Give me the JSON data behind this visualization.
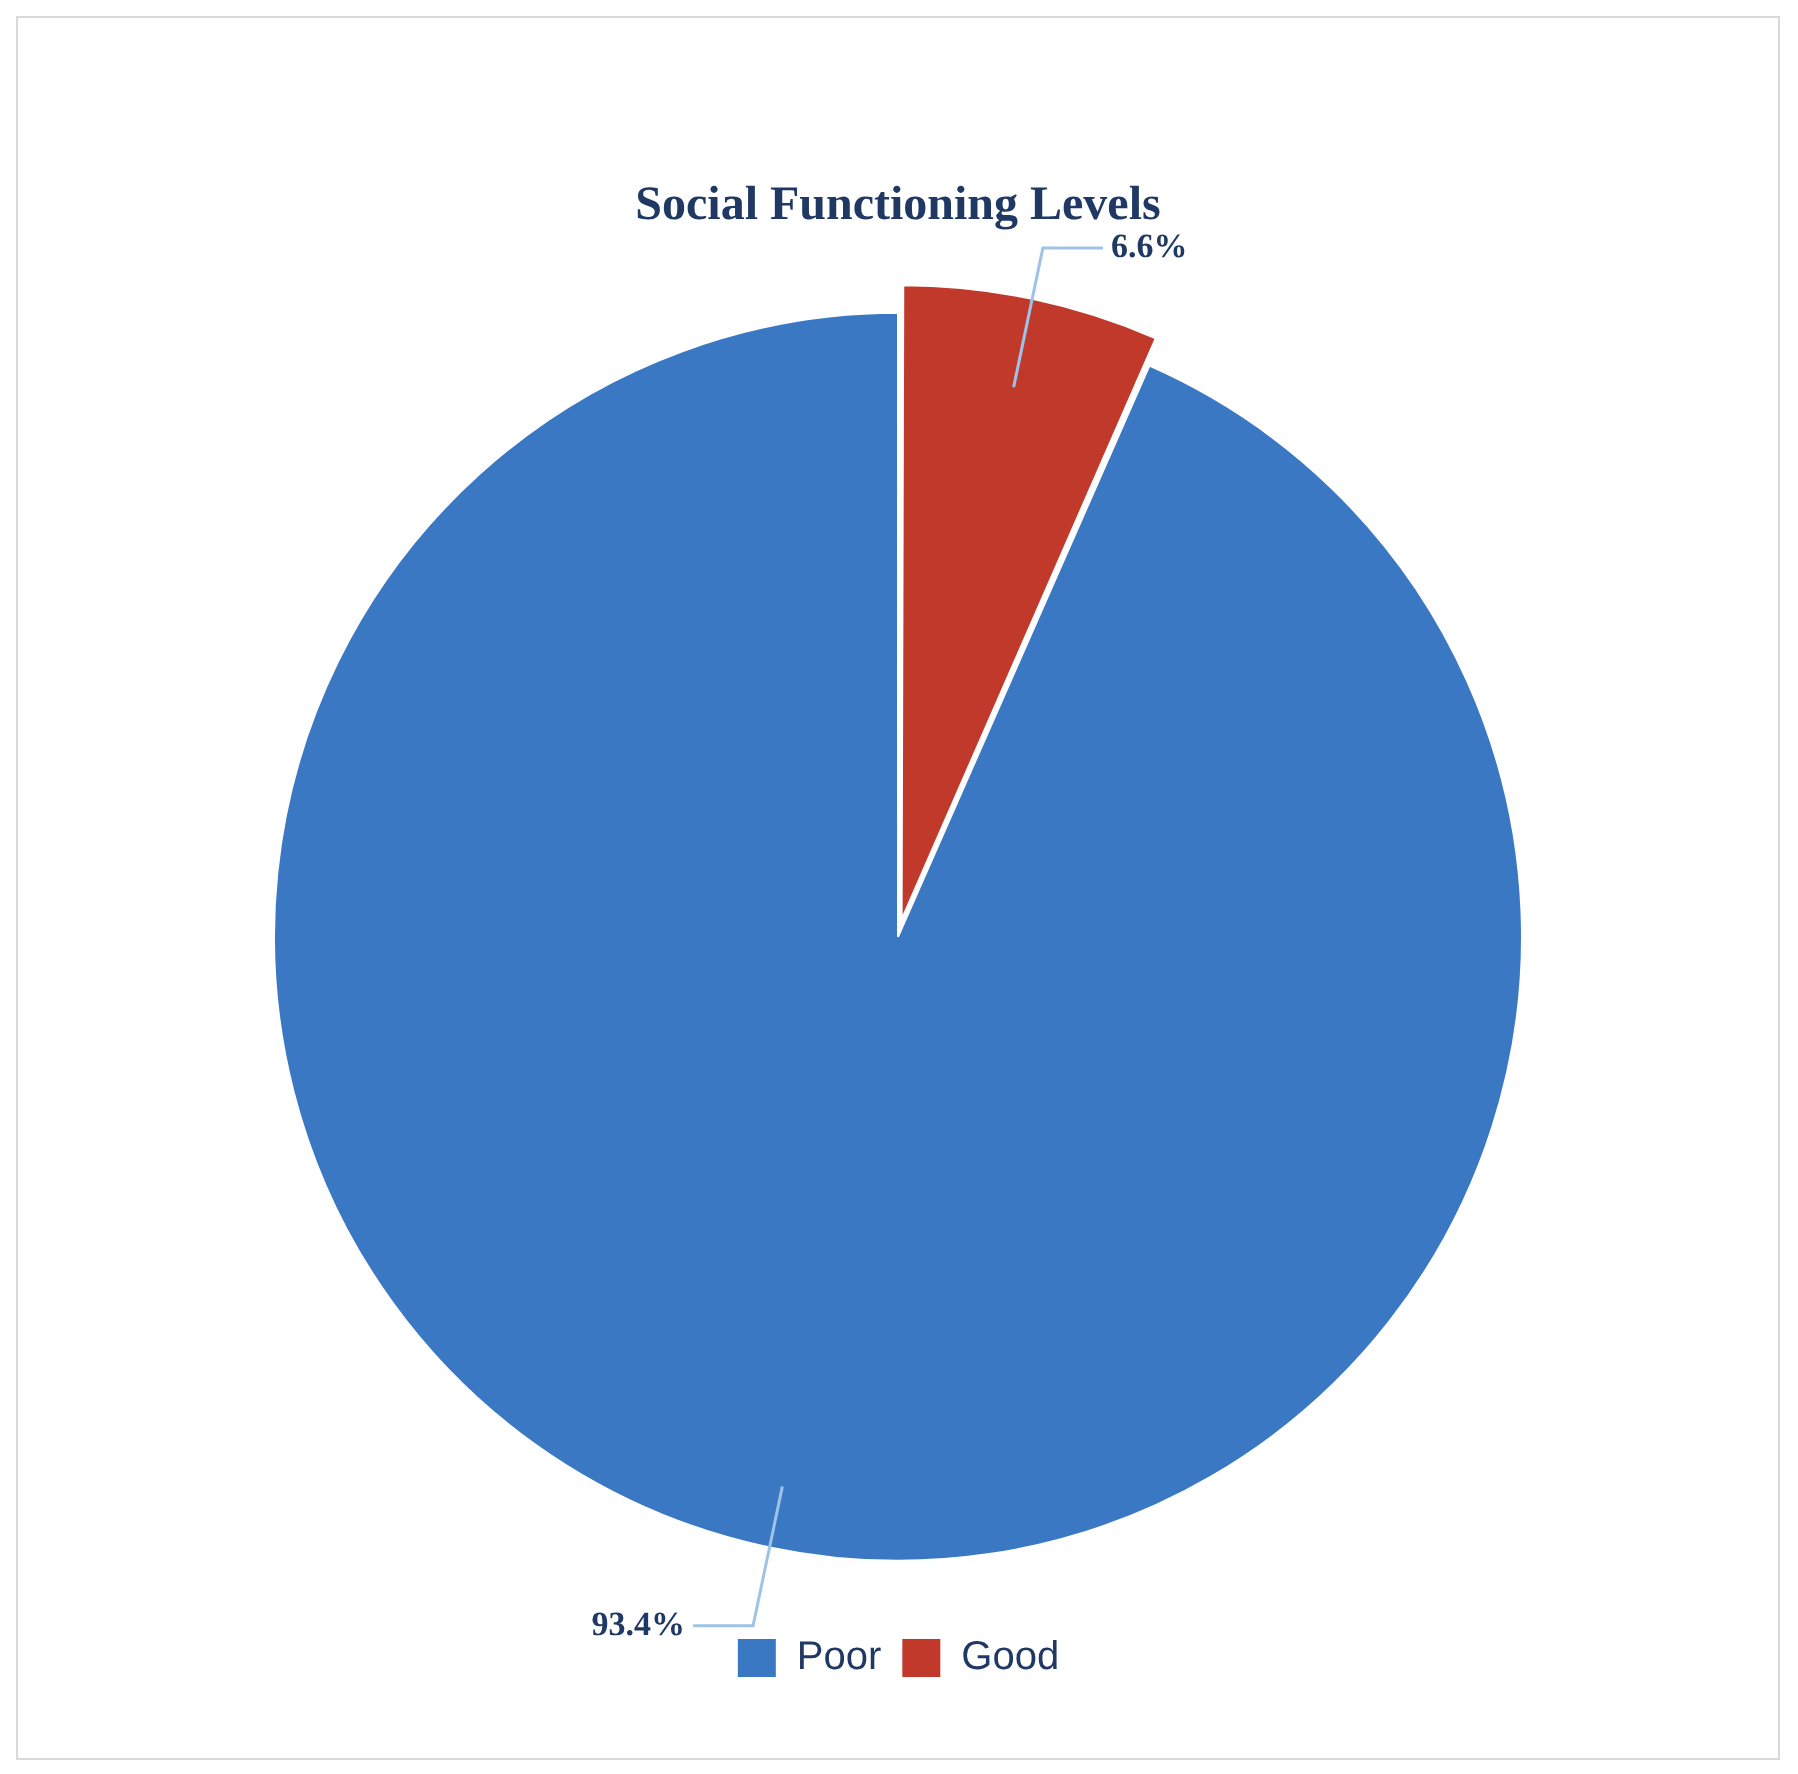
{
  "chart_data": {
    "type": "pie",
    "title": "Social Functioning Levels",
    "categories": [
      "Poor",
      "Good"
    ],
    "values": [
      93.4,
      6.6
    ],
    "colors": [
      "#3a78c3",
      "#c0392b"
    ],
    "value_labels": [
      "93.4%",
      "6.6%"
    ],
    "legend": "bottom"
  }
}
